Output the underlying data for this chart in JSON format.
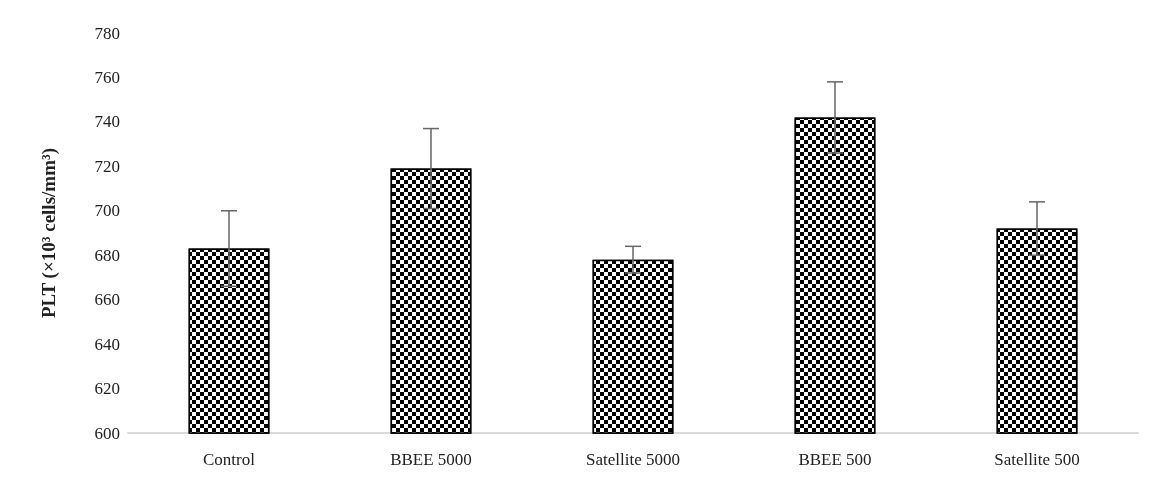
{
  "chart_data": {
    "type": "bar",
    "ylabel": "PLT (×10³ cells/mm³)",
    "categories": [
      "Control",
      "BBEE 5000",
      "Satellite 5000",
      "BBEE 500",
      "Satellite 500"
    ],
    "values": [
      683,
      719,
      678,
      742,
      692
    ],
    "errors": [
      17,
      18,
      6,
      16,
      12
    ],
    "color": "#000000",
    "ylim": [
      600,
      780
    ],
    "yticks": [
      600,
      620,
      640,
      660,
      680,
      700,
      720,
      740,
      760,
      780
    ],
    "grid": false
  }
}
